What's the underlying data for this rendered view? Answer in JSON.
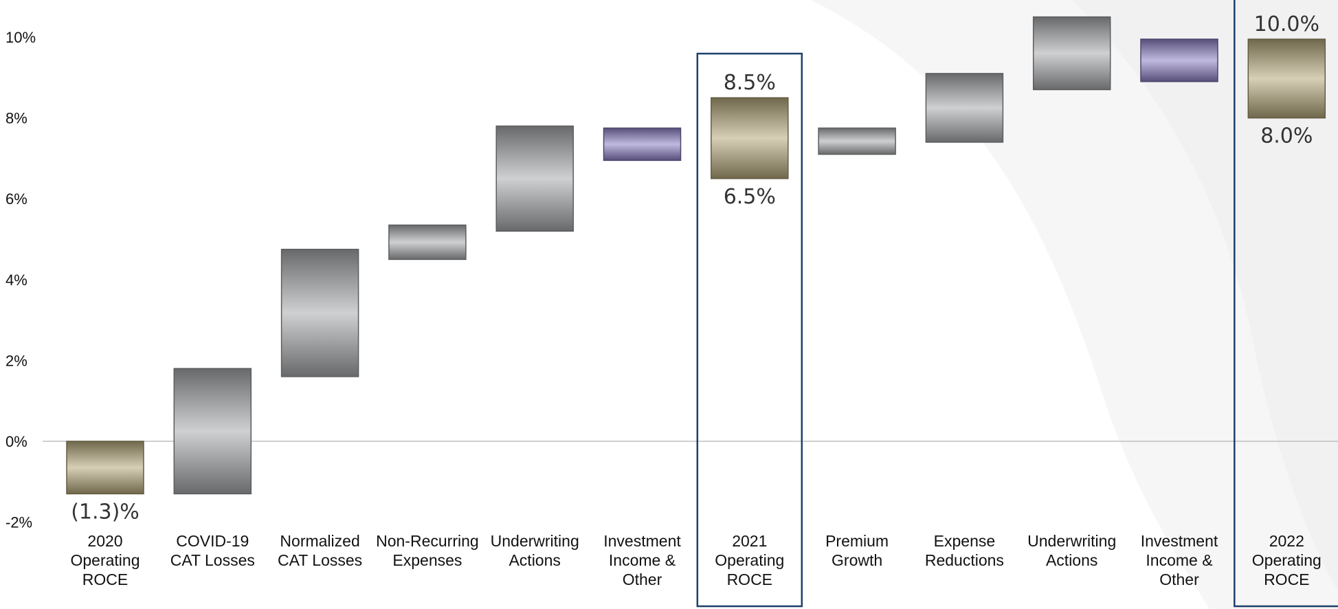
{
  "chart_data": {
    "type": "bar",
    "subtype": "waterfall",
    "title": "",
    "xlabel": "",
    "ylabel": "",
    "ylim": [
      -2,
      10
    ],
    "yticks": [
      "-2%",
      "0%",
      "2%",
      "4%",
      "6%",
      "8%",
      "10%"
    ],
    "grid": false,
    "legend": "none",
    "colors": {
      "total": "#b5a77a",
      "change": "#a6a9ad",
      "investment": "#8d7fc4",
      "highlight_border": "#1d3f6b",
      "zero_line": "#bfbfbf"
    },
    "bars": [
      {
        "category": [
          "2020",
          "Operating",
          "ROCE"
        ],
        "kind": "total",
        "start": 0,
        "end": -1.3,
        "label_below": "(1.3)%"
      },
      {
        "category": [
          "COVID-19",
          "CAT Losses"
        ],
        "kind": "change",
        "start": -1.3,
        "end": 1.8
      },
      {
        "category": [
          "Normalized",
          "CAT Losses"
        ],
        "kind": "change",
        "start": 1.6,
        "end": 4.75
      },
      {
        "category": [
          "Non-Recurring",
          "Expenses"
        ],
        "kind": "change",
        "start": 4.5,
        "end": 5.35
      },
      {
        "category": [
          "Underwriting",
          "Actions"
        ],
        "kind": "change",
        "start": 5.2,
        "end": 7.8
      },
      {
        "category": [
          "Investment",
          "Income &",
          "Other"
        ],
        "kind": "investment",
        "start": 6.95,
        "end": 7.75
      },
      {
        "category": [
          "2021",
          "Operating",
          "ROCE"
        ],
        "kind": "total",
        "start": 6.5,
        "end": 8.5,
        "label_above": "8.5%",
        "label_below": "6.5%",
        "highlight": true
      },
      {
        "category": [
          "Premium",
          "Growth"
        ],
        "kind": "change",
        "start": 7.1,
        "end": 7.75
      },
      {
        "category": [
          "Expense",
          "Reductions"
        ],
        "kind": "change",
        "start": 7.4,
        "end": 9.1
      },
      {
        "category": [
          "Underwriting",
          "Actions"
        ],
        "kind": "change",
        "start": 8.7,
        "end": 10.5
      },
      {
        "category": [
          "Investment",
          "Income &",
          "Other"
        ],
        "kind": "investment",
        "start": 8.9,
        "end": 9.95
      },
      {
        "category": [
          "2022",
          "Operating",
          "ROCE"
        ],
        "kind": "total",
        "start": 8.0,
        "end": 9.95,
        "label_above": "10.0%",
        "label_below": "8.0%",
        "highlight": true
      }
    ]
  }
}
